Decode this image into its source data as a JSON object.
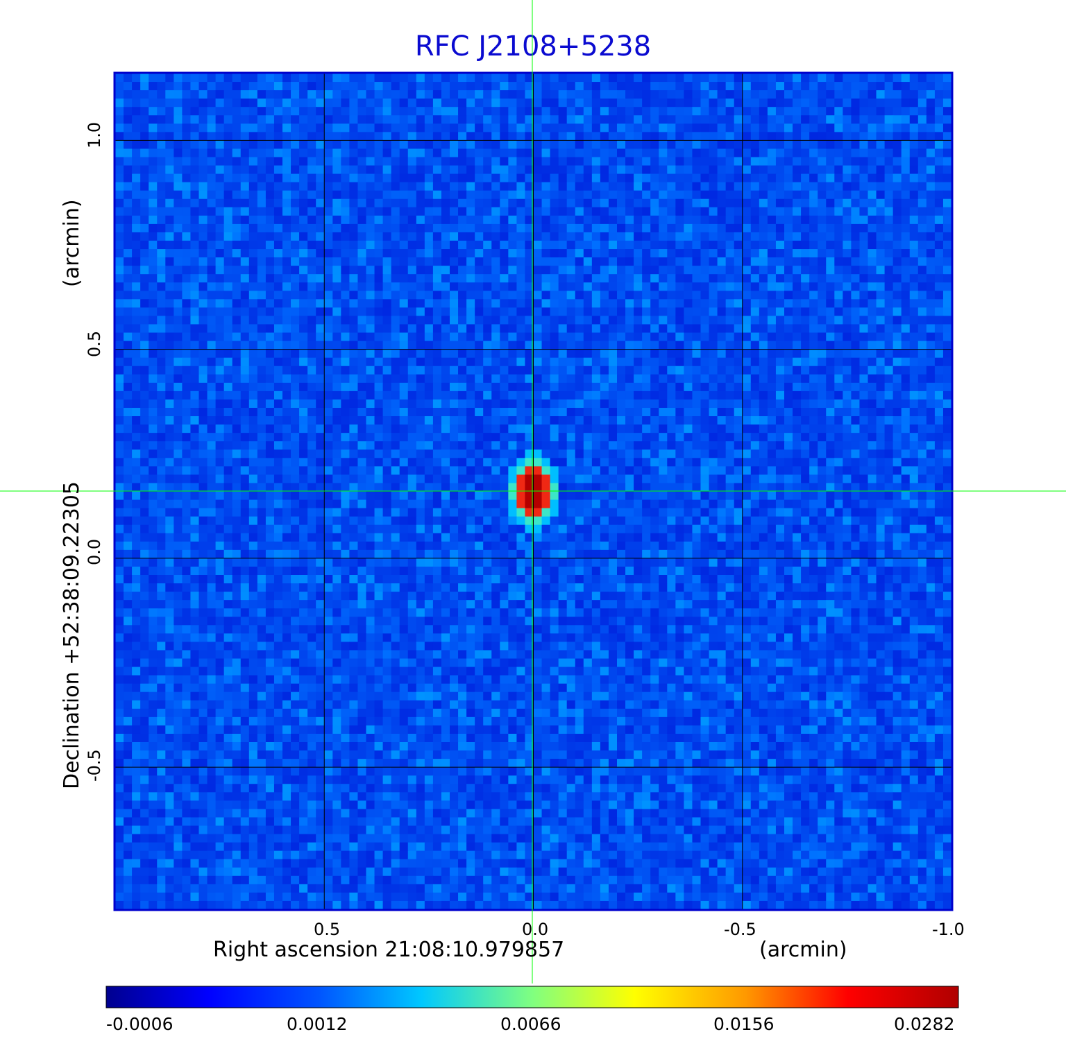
{
  "title": "RFC J2108+5238",
  "x_axis": {
    "label": "Right ascension  21:08:10.979857",
    "unit": "(arcmin)",
    "ticks": [
      "0.5",
      "0.0",
      "-0.5",
      "-1.0"
    ],
    "tick_values": [
      0.5,
      0.0,
      -0.5,
      -1.0
    ],
    "range": [
      1.0,
      -1.0
    ]
  },
  "y_axis": {
    "label": "Declination  +52:38:09.22305",
    "unit": "(arcmin)",
    "ticks": [
      "1.0",
      "0.5",
      "0.0",
      "-0.5"
    ],
    "tick_values": [
      1.0,
      0.5,
      0.0,
      -0.5
    ],
    "range": [
      -0.84,
      1.16
    ]
  },
  "colorbar": {
    "ticks": [
      "-0.0006",
      "0.0012",
      "0.0066",
      "0.0156",
      "0.0282"
    ],
    "colormap": "jet"
  },
  "source": {
    "ra_offset": 0.0,
    "dec_offset": 0.16
  },
  "colors": {
    "title": "#0a0ad0",
    "frame": "#0000cc",
    "crosshair": "#00ff00",
    "grid": "#000000"
  }
}
